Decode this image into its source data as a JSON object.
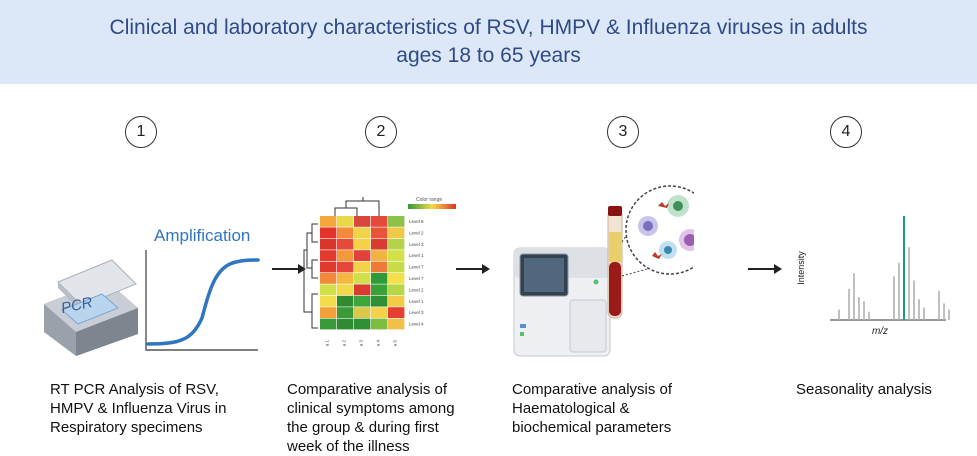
{
  "header": {
    "title_line1": "Clinical and laboratory characteristics of RSV, HMPV & Influenza viruses in adults",
    "title_line2": "ages 18 to 65 years"
  },
  "steps": [
    {
      "number": "1",
      "caption_lines": [
        "RT PCR Analysis of RSV,",
        "HMPV & Influenza Virus in",
        "Respiratory specimens"
      ]
    },
    {
      "number": "2",
      "caption_lines": [
        "Comparative analysis of",
        "clinical symptoms among",
        "the group & during first",
        "week of the illness"
      ]
    },
    {
      "number": "3",
      "caption_lines": [
        "Comparative analysis of",
        "Haematological &",
        "biochemical  parameters"
      ]
    },
    {
      "number": "4",
      "caption_lines": [
        "Seasonality analysis"
      ]
    }
  ],
  "pcr": {
    "device_label": "PCR",
    "curve_label": "Amplification"
  },
  "heatmap": {
    "legend_title": "Color range",
    "row_labels": [
      "Level 8",
      "Level 2",
      "Level 3",
      "Level 1",
      "Level 7",
      "Level 7",
      "Level 2",
      "Level 1",
      "Level 3",
      "Level 4"
    ],
    "column_labels": [
      "a 1",
      "a 2",
      "a 3",
      "a 4",
      "a 5"
    ],
    "cell_colors": [
      [
        "#f4a83a",
        "#e8d84a",
        "#d9473a",
        "#e34a3a",
        "#8cc24a"
      ],
      [
        "#e3342a",
        "#f28a3a",
        "#f2d24a",
        "#e9533a",
        "#f2c84a"
      ],
      [
        "#d9352b",
        "#e34a3a",
        "#f6d046",
        "#d93b30",
        "#b6d24a"
      ],
      [
        "#e53a2e",
        "#f29a3a",
        "#e0413a",
        "#f4b33e",
        "#d2e04a"
      ],
      [
        "#e03a2e",
        "#e5483a",
        "#f2d24a",
        "#ee7a3a",
        "#c6dc4a"
      ],
      [
        "#f28a3a",
        "#f4b83e",
        "#cfe04a",
        "#2f9a3a",
        "#f4e04a"
      ],
      [
        "#d0e04a",
        "#f2d84a",
        "#d93b30",
        "#3aa03a",
        "#b6d64a"
      ],
      [
        "#f2dc4a",
        "#2f8a30",
        "#3ea53a",
        "#2f8f34",
        "#f2cc46"
      ],
      [
        "#f4a03a",
        "#3a9a38",
        "#d9c84a",
        "#f4d24a",
        "#e63e30"
      ],
      [
        "#3a9a38",
        "#2f8a30",
        "#2f8f34",
        "#7cbc40",
        "#f2c04a"
      ]
    ]
  },
  "mass_spec": {
    "y_label": "Intensity",
    "x_label": "m/z",
    "peaks": [
      {
        "mz": 1,
        "intensity": 0.1
      },
      {
        "mz": 3,
        "intensity": 0.3
      },
      {
        "mz": 4,
        "intensity": 0.45
      },
      {
        "mz": 5,
        "intensity": 0.22
      },
      {
        "mz": 6,
        "intensity": 0.18
      },
      {
        "mz": 7,
        "intensity": 0.08
      },
      {
        "mz": 12,
        "intensity": 0.42
      },
      {
        "mz": 13,
        "intensity": 0.55
      },
      {
        "mz": 14,
        "intensity": 1.0,
        "highlight": true
      },
      {
        "mz": 15,
        "intensity": 0.7
      },
      {
        "mz": 16,
        "intensity": 0.38
      },
      {
        "mz": 17,
        "intensity": 0.2
      },
      {
        "mz": 18,
        "intensity": 0.12
      },
      {
        "mz": 21,
        "intensity": 0.28
      },
      {
        "mz": 22,
        "intensity": 0.16
      },
      {
        "mz": 23,
        "intensity": 0.1
      }
    ],
    "bar_color": "#b0b0b0",
    "highlight_color": "#1a9a8a"
  },
  "colors": {
    "title_band": "#dce8f7",
    "title_text": "#2f4a86",
    "curve": "#2f76c0"
  }
}
